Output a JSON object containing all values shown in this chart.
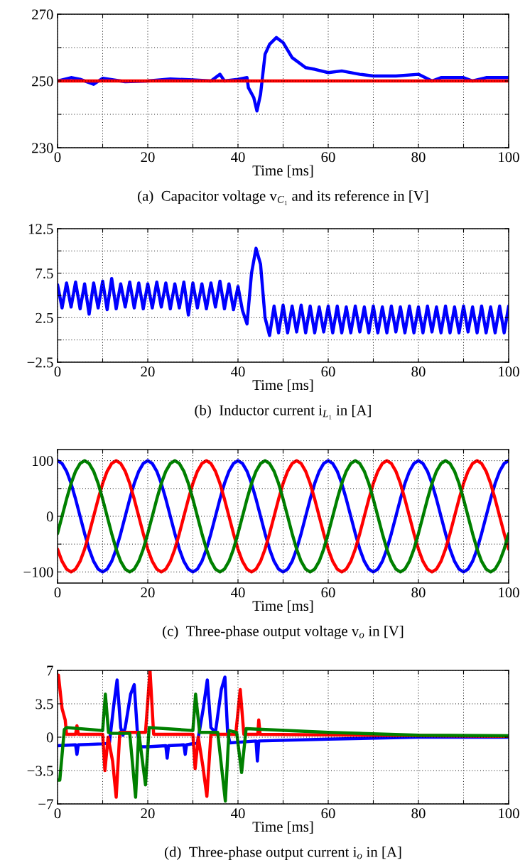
{
  "chart_data": [
    {
      "type": "line",
      "xlabel": "Time [ms]",
      "annotations": [
        "(a)  Capacitor voltage v$_{C₁}$ and its reference in [V]"
      ],
      "xlim": [
        0,
        100
      ],
      "xticks": [
        0,
        {
          "value": 10,
          "label": null
        },
        20,
        {
          "value": 30,
          "label": null
        },
        40,
        {
          "value": 50,
          "label": null
        },
        60,
        {
          "value": 70,
          "label": null
        },
        80,
        {
          "value": 90,
          "label": null
        },
        100
      ],
      "ylim": [
        230,
        270
      ],
      "yticks": [
        230,
        {
          "value": 240,
          "label": null
        },
        250,
        {
          "value": 260,
          "label": null
        },
        270
      ],
      "grid": true,
      "series": [
        {
          "color": "#0000ff",
          "x": [
            0,
            3,
            5,
            8,
            10,
            15,
            20,
            25,
            30,
            34,
            36,
            37,
            40,
            42,
            42.3,
            43.5,
            44.2,
            45,
            46,
            47,
            48.5,
            50,
            52,
            55,
            57,
            60,
            63,
            67,
            70,
            75,
            80,
            83,
            85,
            90,
            92,
            95,
            100
          ],
          "values": [
            250,
            251,
            250.5,
            249,
            250.8,
            249.8,
            250,
            250.6,
            250.3,
            250,
            252,
            250,
            250.5,
            251,
            248,
            245,
            241,
            246,
            258,
            261,
            263,
            261.5,
            257,
            254,
            253.5,
            252.5,
            253,
            252,
            251.5,
            251.5,
            252,
            250,
            251,
            251,
            250,
            251,
            251
          ]
        },
        {
          "color": "#ff0000",
          "x": [
            0,
            100
          ],
          "values": [
            250,
            250
          ]
        }
      ]
    },
    {
      "type": "line",
      "xlabel": "Time [ms]",
      "annotations": [
        "(b)  Inductor current i$_{L₁}$ in [A]"
      ],
      "xlim": [
        0,
        100
      ],
      "xticks": [
        0,
        {
          "value": 10,
          "label": null
        },
        20,
        {
          "value": 30,
          "label": null
        },
        40,
        {
          "value": 50,
          "label": null
        },
        60,
        {
          "value": 70,
          "label": null
        },
        80,
        {
          "value": 90,
          "label": null
        },
        100
      ],
      "ylim": [
        -2.5,
        12.5
      ],
      "yticks": [
        {
          "value": -2.5,
          "label": "−2.5"
        },
        {
          "value": 0,
          "label": null
        },
        2.5,
        {
          "value": 5,
          "label": null
        },
        7.5,
        {
          "value": 10,
          "label": null
        },
        12.5
      ],
      "grid": true,
      "series": [
        {
          "color": "#0000ff",
          "x": [
            0,
            1,
            2,
            3,
            4,
            5,
            6,
            7,
            8,
            9,
            10,
            11,
            12,
            13,
            14,
            15,
            16,
            17,
            18,
            19,
            20,
            21,
            22,
            23,
            24,
            25,
            26,
            27,
            28,
            29,
            30,
            31,
            32,
            33,
            34,
            35,
            36,
            37,
            38,
            39,
            40,
            41,
            42,
            43,
            44,
            45,
            46,
            47,
            48,
            49,
            50,
            51,
            52,
            53,
            54,
            55,
            56,
            57,
            58,
            59,
            60,
            61,
            62,
            63,
            64,
            65,
            66,
            67,
            68,
            69,
            70,
            71,
            72,
            73,
            74,
            75,
            76,
            77,
            78,
            79,
            80,
            81,
            82,
            83,
            84,
            85,
            86,
            87,
            88,
            89,
            90,
            91,
            92,
            93,
            94,
            95,
            96,
            97,
            98,
            99,
            100
          ],
          "values": [
            6.2,
            3.6,
            6.4,
            3.7,
            6.5,
            3.5,
            6.3,
            2.9,
            6.4,
            3.6,
            6.6,
            3.4,
            6.9,
            3.5,
            6.3,
            3.7,
            6.5,
            3.6,
            6.4,
            3.5,
            6.3,
            3.6,
            6.5,
            3.7,
            6.4,
            3.5,
            6.3,
            3.6,
            6.5,
            2.8,
            6.4,
            3.6,
            6.3,
            3.5,
            6.4,
            3.7,
            6.6,
            3.5,
            6.3,
            3.4,
            6.0,
            3.3,
            1.8,
            7.5,
            10.3,
            8.5,
            2.5,
            0.5,
            3.8,
            0.8,
            3.9,
            0.8,
            3.8,
            0.9,
            3.9,
            0.8,
            3.8,
            0.8,
            3.7,
            0.9,
            3.8,
            0.8,
            3.8,
            0.8,
            3.7,
            0.8,
            3.8,
            0.9,
            3.7,
            0.8,
            3.8,
            0.8,
            3.7,
            0.8,
            3.8,
            0.9,
            3.7,
            0.8,
            3.8,
            0.8,
            3.7,
            0.8,
            3.8,
            0.9,
            3.7,
            0.8,
            3.8,
            0.8,
            3.7,
            0.8,
            3.8,
            0.9,
            3.7,
            0.8,
            3.8,
            0.8,
            3.7,
            0.8,
            3.8,
            0.8,
            3.8
          ]
        }
      ]
    },
    {
      "type": "line",
      "xlabel": "Time [ms]",
      "annotations": [
        "(c)  Three-phase output voltage v$_{o}$ in [V]"
      ],
      "xlim": [
        0,
        100
      ],
      "xticks": [
        0,
        {
          "value": 10,
          "label": null
        },
        20,
        {
          "value": 30,
          "label": null
        },
        40,
        {
          "value": 50,
          "label": null
        },
        60,
        {
          "value": 70,
          "label": null
        },
        80,
        {
          "value": 90,
          "label": null
        },
        100
      ],
      "ylim": [
        -120,
        120
      ],
      "yticks": [
        {
          "value": -100,
          "label": "−100"
        },
        {
          "value": -50,
          "label": null
        },
        0,
        {
          "value": 50,
          "label": null
        },
        100
      ],
      "grid": true,
      "x": [
        0,
        1,
        2,
        3,
        4,
        5,
        6,
        7,
        8,
        9,
        10,
        11,
        12,
        13,
        14,
        15,
        16,
        17,
        18,
        19,
        20,
        21,
        22,
        23,
        24,
        25,
        26,
        27,
        28,
        29,
        30,
        31,
        32,
        33,
        34,
        35,
        36,
        37,
        38,
        39,
        40,
        41,
        42,
        43,
        44,
        45,
        46,
        47,
        48,
        49,
        50,
        51,
        52,
        53,
        54,
        55,
        56,
        57,
        58,
        59,
        60,
        61,
        62,
        63,
        64,
        65,
        66,
        67,
        68,
        69,
        70,
        71,
        72,
        73,
        74,
        75,
        76,
        77,
        78,
        79,
        80,
        81,
        82,
        83,
        84,
        85,
        86,
        87,
        88,
        89,
        90,
        91,
        92,
        93,
        94,
        95,
        96,
        97,
        98,
        99,
        100
      ],
      "series": [
        {
          "color": "#0000ff",
          "values": [
            100,
            95,
            81,
            59,
            31,
            0,
            -31,
            -59,
            -81,
            -95,
            -100,
            -95,
            -81,
            -59,
            -31,
            0,
            31,
            59,
            81,
            95,
            100,
            95,
            81,
            59,
            31,
            0,
            -31,
            -59,
            -81,
            -95,
            -100,
            -95,
            -81,
            -59,
            -31,
            0,
            31,
            59,
            81,
            95,
            100,
            95,
            81,
            59,
            31,
            0,
            -31,
            -59,
            -81,
            -95,
            -100,
            -95,
            -81,
            -59,
            -31,
            0,
            31,
            59,
            81,
            95,
            100,
            95,
            81,
            59,
            31,
            0,
            -31,
            -59,
            -81,
            -95,
            -100,
            -95,
            -81,
            -59,
            -31,
            0,
            31,
            59,
            81,
            95,
            100,
            95,
            81,
            59,
            31,
            0,
            -31,
            -59,
            -81,
            -95,
            -100,
            -95,
            -81,
            -59,
            -31,
            0,
            31,
            59,
            81,
            95,
            100
          ]
        },
        {
          "color": "#ff0000",
          "values": [
            -59,
            -81,
            -95,
            -100,
            -95,
            -81,
            -59,
            -31,
            0,
            31,
            59,
            81,
            95,
            100,
            95,
            81,
            59,
            31,
            0,
            -31,
            -59,
            -81,
            -95,
            -100,
            -95,
            -81,
            -59,
            -31,
            0,
            31,
            59,
            81,
            95,
            100,
            95,
            81,
            59,
            31,
            0,
            -31,
            -59,
            -81,
            -95,
            -100,
            -95,
            -81,
            -59,
            -31,
            0,
            31,
            59,
            81,
            95,
            100,
            95,
            81,
            59,
            31,
            0,
            -31,
            -59,
            -81,
            -95,
            -100,
            -95,
            -81,
            -59,
            -31,
            0,
            31,
            59,
            81,
            95,
            100,
            95,
            81,
            59,
            31,
            0,
            -31,
            -59,
            -81,
            -95,
            -100,
            -95,
            -81,
            -59,
            -31,
            0,
            31,
            59,
            81,
            95,
            100,
            95,
            81,
            59,
            31,
            0,
            -31,
            -59
          ]
        },
        {
          "color": "#008000",
          "values": [
            -31,
            0,
            31,
            59,
            81,
            95,
            100,
            95,
            81,
            59,
            31,
            0,
            -31,
            -59,
            -81,
            -95,
            -100,
            -95,
            -81,
            -59,
            -31,
            0,
            31,
            59,
            81,
            95,
            100,
            95,
            81,
            59,
            31,
            0,
            -31,
            -59,
            -81,
            -95,
            -100,
            -95,
            -81,
            -59,
            -31,
            0,
            31,
            59,
            81,
            95,
            100,
            95,
            81,
            59,
            31,
            0,
            -31,
            -59,
            -81,
            -95,
            -100,
            -95,
            -81,
            -59,
            -31,
            0,
            31,
            59,
            81,
            95,
            100,
            95,
            81,
            59,
            31,
            0,
            -31,
            -59,
            -81,
            -95,
            -100,
            -95,
            -81,
            -59,
            -31,
            0,
            31,
            59,
            81,
            95,
            100,
            95,
            81,
            59,
            31,
            0,
            -31,
            -59,
            -81,
            -95,
            -100,
            -95,
            -81,
            -59,
            -31
          ]
        }
      ]
    },
    {
      "type": "line",
      "xlabel": "Time [ms]",
      "annotations": [
        "(d)  Three-phase output current i$_{o}$ in [A]"
      ],
      "xlim": [
        0,
        100
      ],
      "xticks": [
        0,
        {
          "value": 10,
          "label": null
        },
        20,
        {
          "value": 30,
          "label": null
        },
        40,
        {
          "value": 50,
          "label": null
        },
        60,
        {
          "value": 70,
          "label": null
        },
        80,
        {
          "value": 90,
          "label": null
        },
        100
      ],
      "ylim": [
        -7,
        7
      ],
      "yticks": [
        {
          "value": -7,
          "label": "−7"
        },
        {
          "value": -3.5,
          "label": "−3.5"
        },
        0,
        3.5,
        7
      ],
      "grid": true,
      "series": [
        {
          "color": "#0000ff",
          "x": [
            0,
            4,
            4.3,
            4.6,
            10,
            11.5,
            12.5,
            13.2,
            14,
            14.5,
            15,
            16.2,
            17,
            17.7,
            18.3,
            20,
            24,
            24.3,
            24.6,
            28,
            28.3,
            28.6,
            31,
            32.3,
            33.2,
            34,
            35,
            36.3,
            37.1,
            37.7,
            38.2,
            44,
            44.3,
            44.6,
            60,
            80,
            100
          ],
          "values": [
            -0.9,
            -0.8,
            -1.8,
            -0.8,
            -0.7,
            -0.6,
            3.5,
            6,
            1,
            0.2,
            1,
            4.5,
            5.5,
            0.5,
            -1,
            -1,
            -0.9,
            -2.2,
            -0.9,
            -0.8,
            -1.8,
            -0.8,
            -0.6,
            3,
            6,
            1,
            0.5,
            5,
            6.3,
            0.5,
            -0.6,
            -0.4,
            -2.5,
            -0.4,
            -0.2,
            0,
            0
          ]
        },
        {
          "color": "#ff0000",
          "x": [
            0.2,
            1,
            1.7,
            2,
            4,
            4.3,
            4.6,
            10,
            10.5,
            11.2,
            12.2,
            13,
            13.8,
            19.5,
            20.5,
            21.3,
            30,
            30.5,
            31.2,
            32.2,
            33.1,
            34,
            39.5,
            40.5,
            41.3,
            44.4,
            44.6,
            44.9,
            70,
            100
          ],
          "values": [
            6.5,
            3,
            1.8,
            0.3,
            0.3,
            1.2,
            0.3,
            0.3,
            -3.5,
            0,
            -2.5,
            -6.3,
            0.5,
            0.5,
            7,
            0.3,
            0.3,
            -3.3,
            0,
            -3,
            -6.2,
            0.3,
            0.3,
            5,
            0.3,
            0.3,
            1.8,
            0.3,
            0.2,
            0.1
          ]
        },
        {
          "color": "#008000",
          "x": [
            0,
            0.5,
            1.5,
            2,
            10,
            10.6,
            11.3,
            12,
            16,
            17.3,
            18,
            19.5,
            20.3,
            30,
            30.6,
            31.5,
            35.5,
            37.2,
            38,
            39.7,
            40.8,
            41.8,
            60,
            80,
            100
          ],
          "values": [
            -4.5,
            -4.5,
            0.8,
            1,
            0.7,
            4.5,
            0.5,
            0.4,
            0.4,
            -6.3,
            0.5,
            -5,
            1,
            0.7,
            4.5,
            0.5,
            0.5,
            -6.7,
            0.7,
            0.5,
            -3.7,
            0.9,
            0.5,
            0.2,
            0.15
          ]
        }
      ]
    }
  ]
}
